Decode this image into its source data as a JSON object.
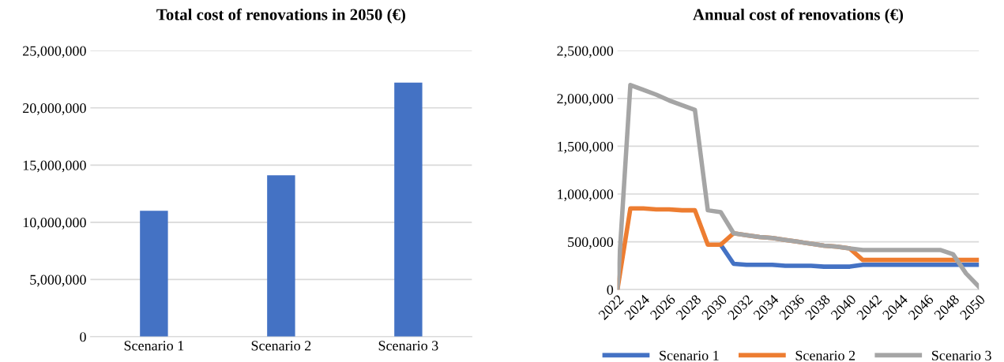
{
  "chart_data": [
    {
      "type": "bar",
      "title": "Total cost of renovations in 2050 (€)",
      "categories": [
        "Scenario 1",
        "Scenario 2",
        "Scenario 3"
      ],
      "values": [
        11000000,
        14100000,
        22200000
      ],
      "color": "#4472c4",
      "ylim": [
        0,
        25000000
      ],
      "yticks": [
        {
          "value": 0,
          "label": "0"
        },
        {
          "value": 5000000,
          "label": "5,000,000"
        },
        {
          "value": 10000000,
          "label": "10,000,000"
        },
        {
          "value": 15000000,
          "label": "15,000,000"
        },
        {
          "value": 20000000,
          "label": "20,000,000"
        },
        {
          "value": 25000000,
          "label": "25,000,000"
        }
      ],
      "grid": "y",
      "legend": false
    },
    {
      "type": "line",
      "title": "Annual cost of renovations (€)",
      "x": [
        2022,
        2023,
        2024,
        2025,
        2026,
        2027,
        2028,
        2029,
        2030,
        2031,
        2032,
        2033,
        2034,
        2035,
        2036,
        2037,
        2038,
        2039,
        2040,
        2041,
        2042,
        2043,
        2044,
        2045,
        2046,
        2047,
        2048,
        2049,
        2050
      ],
      "series": [
        {
          "name": "Scenario 1",
          "color": "#4472c4",
          "values": [
            null,
            null,
            null,
            null,
            null,
            null,
            null,
            null,
            470000,
            270000,
            260000,
            260000,
            260000,
            250000,
            250000,
            250000,
            240000,
            240000,
            240000,
            260000,
            260000,
            260000,
            260000,
            260000,
            260000,
            260000,
            260000,
            260000,
            260000
          ]
        },
        {
          "name": "Scenario 2",
          "color": "#ed7d31",
          "values": [
            0,
            850000,
            850000,
            840000,
            840000,
            830000,
            830000,
            470000,
            470000,
            590000,
            570000,
            550000,
            540000,
            520000,
            500000,
            480000,
            460000,
            450000,
            430000,
            310000,
            310000,
            310000,
            310000,
            310000,
            310000,
            310000,
            310000,
            310000,
            310000
          ]
        },
        {
          "name": "Scenario 3",
          "color": "#a5a5a5",
          "values": [
            0,
            2140000,
            2090000,
            2040000,
            1980000,
            1930000,
            1880000,
            830000,
            810000,
            590000,
            570000,
            550000,
            540000,
            520000,
            500000,
            480000,
            460000,
            450000,
            430000,
            415000,
            415000,
            415000,
            415000,
            415000,
            415000,
            415000,
            370000,
            170000,
            30000
          ]
        }
      ],
      "xlim": [
        2022,
        2050
      ],
      "xticks": [
        2022,
        2024,
        2026,
        2028,
        2030,
        2032,
        2034,
        2036,
        2038,
        2040,
        2042,
        2044,
        2046,
        2048,
        2050
      ],
      "ylim": [
        0,
        2500000
      ],
      "yticks": [
        {
          "value": 0,
          "label": "0"
        },
        {
          "value": 500000,
          "label": "500,000"
        },
        {
          "value": 1000000,
          "label": "1,000,000"
        },
        {
          "value": 1500000,
          "label": "1,500,000"
        },
        {
          "value": 2000000,
          "label": "2,000,000"
        },
        {
          "value": 2500000,
          "label": "2,500,000"
        }
      ],
      "grid": "y",
      "legend": "bottom"
    }
  ]
}
